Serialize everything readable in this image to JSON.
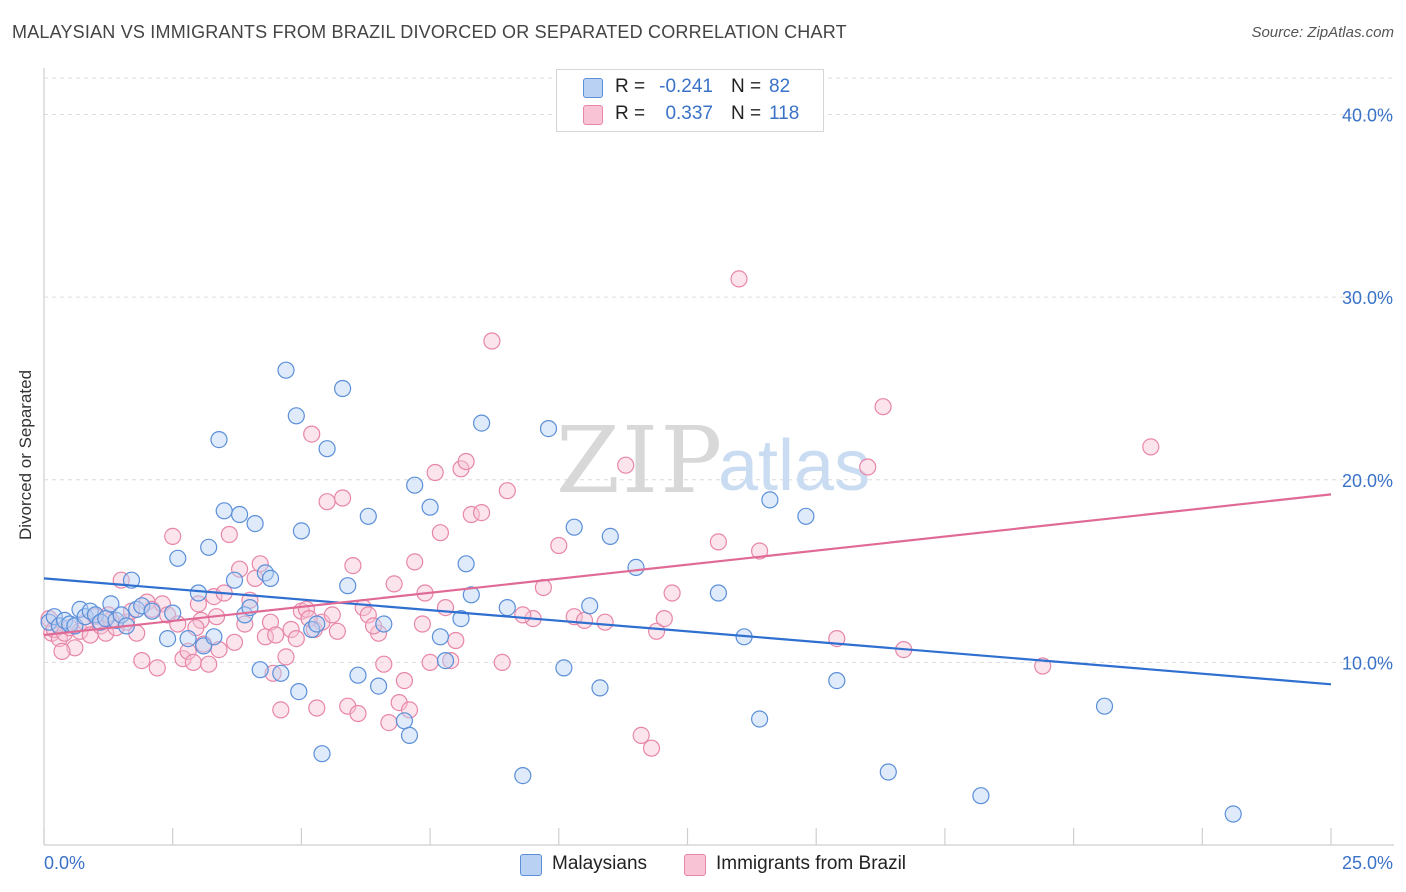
{
  "title": "MALAYSIAN VS IMMIGRANTS FROM BRAZIL DIVORCED OR SEPARATED CORRELATION CHART",
  "source": "Source: ZipAtlas.com",
  "watermark": {
    "zip": "ZIP",
    "atlas": "atlas"
  },
  "colors": {
    "blue": "#5b8fd9",
    "blue_fill": "#b9d2f3",
    "blue_line": "#2e6fd0",
    "pink": "#e886a8",
    "pink_fill": "#f7c3d5",
    "pink_line": "#e06a96",
    "axis_text": "#3a72c8",
    "grid": "#dcdcdc"
  },
  "legend": {
    "rows": [
      {
        "r_label": "R =",
        "r_value": "-0.241",
        "n_label": "N =",
        "n_value": "82"
      },
      {
        "r_label": "R =",
        "r_value": "0.337",
        "n_label": "N =",
        "n_value": "118"
      }
    ]
  },
  "bottom_legend": {
    "series1": "Malaysians",
    "series2": "Immigrants from Brazil"
  },
  "chart_data": {
    "type": "scatter",
    "title": "MALAYSIAN VS IMMIGRANTS FROM BRAZIL DIVORCED OR SEPARATED CORRELATION CHART",
    "xlabel": "",
    "ylabel": "Divorced or Separated",
    "xlim": [
      0,
      25
    ],
    "ylim": [
      0,
      42
    ],
    "x_tick_labels": [
      "0.0%",
      "25.0%"
    ],
    "y_ticks": [
      10,
      20,
      30,
      40
    ],
    "y_tick_labels": [
      "10.0%",
      "20.0%",
      "30.0%",
      "40.0%"
    ],
    "grid": true,
    "legend_position": "top-center",
    "series": [
      {
        "name": "Malaysians",
        "R": -0.241,
        "N": 82,
        "trend": {
          "x": [
            0,
            25
          ],
          "y": [
            14.6,
            8.8
          ]
        },
        "points": [
          [
            0.1,
            12.2
          ],
          [
            0.2,
            12.5
          ],
          [
            0.3,
            12.0
          ],
          [
            0.4,
            12.3
          ],
          [
            0.5,
            12.1
          ],
          [
            0.6,
            12.0
          ],
          [
            0.7,
            12.9
          ],
          [
            0.8,
            12.5
          ],
          [
            0.9,
            12.8
          ],
          [
            1.0,
            12.6
          ],
          [
            1.1,
            12.2
          ],
          [
            1.2,
            12.4
          ],
          [
            1.3,
            13.2
          ],
          [
            1.4,
            12.3
          ],
          [
            1.5,
            12.6
          ],
          [
            1.6,
            12.0
          ],
          [
            1.7,
            14.5
          ],
          [
            1.8,
            12.9
          ],
          [
            1.9,
            13.1
          ],
          [
            2.1,
            12.8
          ],
          [
            2.4,
            11.3
          ],
          [
            2.5,
            12.7
          ],
          [
            2.6,
            15.7
          ],
          [
            2.8,
            11.3
          ],
          [
            3.0,
            13.8
          ],
          [
            3.1,
            10.9
          ],
          [
            3.2,
            16.3
          ],
          [
            3.3,
            11.4
          ],
          [
            3.4,
            22.2
          ],
          [
            3.5,
            18.3
          ],
          [
            3.7,
            14.5
          ],
          [
            3.8,
            18.1
          ],
          [
            3.9,
            12.6
          ],
          [
            4.0,
            13.0
          ],
          [
            4.1,
            17.6
          ],
          [
            4.2,
            9.6
          ],
          [
            4.3,
            14.9
          ],
          [
            4.4,
            14.6
          ],
          [
            4.6,
            9.4
          ],
          [
            4.7,
            26.0
          ],
          [
            4.9,
            23.5
          ],
          [
            4.95,
            8.4
          ],
          [
            5.0,
            17.2
          ],
          [
            5.2,
            11.8
          ],
          [
            5.3,
            12.1
          ],
          [
            5.4,
            5.0
          ],
          [
            5.5,
            21.7
          ],
          [
            5.8,
            25.0
          ],
          [
            5.9,
            14.2
          ],
          [
            6.1,
            9.3
          ],
          [
            6.3,
            18.0
          ],
          [
            6.5,
            8.7
          ],
          [
            6.6,
            12.1
          ],
          [
            7.0,
            6.8
          ],
          [
            7.1,
            6.0
          ],
          [
            7.2,
            19.7
          ],
          [
            7.5,
            18.5
          ],
          [
            7.7,
            11.4
          ],
          [
            7.8,
            10.1
          ],
          [
            8.1,
            12.4
          ],
          [
            8.2,
            15.4
          ],
          [
            8.3,
            13.7
          ],
          [
            8.5,
            23.1
          ],
          [
            9.0,
            13.0
          ],
          [
            9.3,
            3.8
          ],
          [
            9.8,
            22.8
          ],
          [
            10.1,
            9.7
          ],
          [
            10.3,
            17.4
          ],
          [
            10.6,
            13.1
          ],
          [
            10.8,
            8.6
          ],
          [
            11.0,
            16.9
          ],
          [
            11.5,
            15.2
          ],
          [
            13.1,
            13.8
          ],
          [
            13.6,
            11.4
          ],
          [
            13.9,
            6.9
          ],
          [
            14.1,
            18.9
          ],
          [
            14.8,
            18.0
          ],
          [
            15.4,
            9.0
          ],
          [
            16.4,
            4.0
          ],
          [
            18.2,
            2.7
          ],
          [
            20.6,
            7.6
          ],
          [
            23.1,
            1.7
          ]
        ]
      },
      {
        "name": "Immigrants from Brazil",
        "R": 0.337,
        "N": 118,
        "trend": {
          "x": [
            0,
            25
          ],
          "y": [
            11.5,
            19.2
          ]
        },
        "points": [
          [
            0.1,
            12.4
          ],
          [
            0.15,
            11.6
          ],
          [
            0.2,
            11.8
          ],
          [
            0.3,
            11.3
          ],
          [
            0.4,
            11.6
          ],
          [
            0.5,
            11.9
          ],
          [
            0.6,
            10.8
          ],
          [
            0.7,
            11.7
          ],
          [
            0.8,
            12.2
          ],
          [
            0.9,
            11.5
          ],
          [
            1.0,
            12.5
          ],
          [
            1.1,
            12.0
          ],
          [
            1.2,
            11.6
          ],
          [
            1.3,
            12.3
          ],
          [
            1.4,
            11.9
          ],
          [
            1.5,
            14.5
          ],
          [
            1.6,
            12.2
          ],
          [
            1.7,
            12.8
          ],
          [
            1.8,
            11.6
          ],
          [
            1.9,
            10.1
          ],
          [
            2.0,
            13.3
          ],
          [
            2.1,
            12.9
          ],
          [
            2.2,
            9.7
          ],
          [
            2.3,
            13.2
          ],
          [
            2.4,
            12.6
          ],
          [
            2.5,
            16.9
          ],
          [
            2.6,
            12.1
          ],
          [
            2.7,
            10.2
          ],
          [
            2.8,
            10.6
          ],
          [
            2.9,
            10.0
          ],
          [
            3.0,
            13.2
          ],
          [
            3.05,
            12.3
          ],
          [
            3.1,
            11.0
          ],
          [
            3.2,
            9.9
          ],
          [
            3.3,
            13.6
          ],
          [
            3.4,
            10.7
          ],
          [
            3.5,
            13.8
          ],
          [
            3.6,
            17.0
          ],
          [
            3.7,
            11.1
          ],
          [
            3.8,
            15.1
          ],
          [
            3.9,
            12.1
          ],
          [
            4.0,
            13.4
          ],
          [
            4.1,
            14.6
          ],
          [
            4.2,
            15.4
          ],
          [
            4.3,
            11.4
          ],
          [
            4.4,
            12.2
          ],
          [
            4.5,
            11.5
          ],
          [
            4.6,
            7.4
          ],
          [
            4.7,
            10.3
          ],
          [
            4.8,
            11.8
          ],
          [
            4.9,
            11.3
          ],
          [
            5.0,
            12.8
          ],
          [
            5.1,
            12.9
          ],
          [
            5.2,
            22.5
          ],
          [
            5.25,
            11.8
          ],
          [
            5.3,
            7.5
          ],
          [
            5.4,
            12.2
          ],
          [
            5.5,
            18.8
          ],
          [
            5.6,
            12.6
          ],
          [
            5.7,
            11.7
          ],
          [
            5.8,
            19.0
          ],
          [
            5.9,
            7.6
          ],
          [
            6.0,
            15.3
          ],
          [
            6.1,
            7.2
          ],
          [
            6.2,
            13.0
          ],
          [
            6.3,
            12.6
          ],
          [
            6.5,
            11.6
          ],
          [
            6.6,
            9.9
          ],
          [
            6.7,
            6.7
          ],
          [
            6.8,
            14.3
          ],
          [
            6.9,
            7.8
          ],
          [
            7.0,
            9.0
          ],
          [
            7.1,
            7.4
          ],
          [
            7.2,
            15.5
          ],
          [
            7.4,
            13.8
          ],
          [
            7.5,
            10.0
          ],
          [
            7.6,
            20.4
          ],
          [
            7.7,
            17.1
          ],
          [
            7.8,
            13.0
          ],
          [
            7.9,
            10.1
          ],
          [
            8.0,
            11.2
          ],
          [
            8.1,
            20.6
          ],
          [
            8.2,
            21.0
          ],
          [
            8.3,
            18.1
          ],
          [
            8.5,
            18.2
          ],
          [
            8.7,
            27.6
          ],
          [
            9.0,
            19.4
          ],
          [
            9.5,
            12.4
          ],
          [
            9.7,
            14.1
          ],
          [
            10.0,
            16.4
          ],
          [
            10.3,
            12.5
          ],
          [
            10.5,
            12.3
          ],
          [
            10.9,
            12.2
          ],
          [
            11.3,
            20.8
          ],
          [
            11.6,
            6.0
          ],
          [
            11.8,
            5.3
          ],
          [
            11.9,
            11.7
          ],
          [
            12.2,
            13.8
          ],
          [
            13.1,
            16.6
          ],
          [
            13.5,
            31.0
          ],
          [
            13.9,
            16.1
          ],
          [
            15.4,
            11.3
          ],
          [
            16.0,
            20.7
          ],
          [
            16.3,
            24.0
          ],
          [
            16.7,
            10.7
          ],
          [
            19.4,
            9.8
          ],
          [
            21.5,
            21.8
          ],
          [
            8.9,
            10.0
          ],
          [
            6.4,
            12.0
          ],
          [
            5.15,
            12.4
          ],
          [
            3.35,
            12.5
          ],
          [
            4.45,
            9.4
          ],
          [
            1.25,
            12.6
          ],
          [
            0.35,
            10.6
          ],
          [
            7.35,
            12.1
          ],
          [
            12.05,
            12.4
          ],
          [
            9.3,
            12.6
          ],
          [
            2.95,
            11.9
          ]
        ]
      }
    ]
  }
}
